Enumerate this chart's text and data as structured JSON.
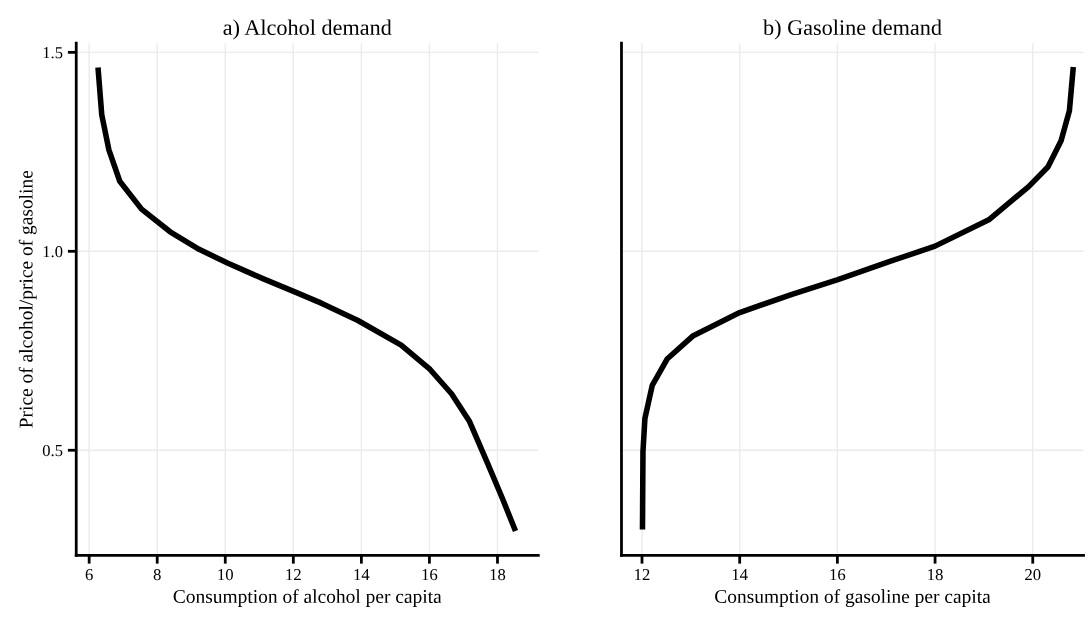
{
  "chart_data": [
    {
      "type": "line",
      "title": "a) Alcohol demand",
      "xlabel": "Consumption of alcohol per capita",
      "ylabel": "Price of alcohol/price of gasoline",
      "xlim": [
        5.62,
        19.2
      ],
      "ylim": [
        0.236,
        1.523
      ],
      "xticks": [
        6,
        8,
        10,
        12,
        14,
        16,
        18
      ],
      "yticks": [
        {
          "value": 0.5,
          "label": "0.5"
        },
        {
          "value": 1,
          "label": "1.0"
        },
        {
          "value": 1.5,
          "label": "1.5"
        }
      ],
      "grid": true,
      "line_style": "solid",
      "marker": "none",
      "series": [
        {
          "color": "#000000",
          "x": [
            6.26,
            6.37,
            6.58,
            6.9,
            7.54,
            8.38,
            9.23,
            10.08,
            11.14,
            11.99,
            12.84,
            13.9,
            15.17,
            16.02,
            16.65,
            17.18,
            17.71,
            18.14,
            18.53
          ],
          "values": [
            1.462,
            1.343,
            1.255,
            1.176,
            1.106,
            1.049,
            1.005,
            0.97,
            0.93,
            0.9,
            0.869,
            0.826,
            0.764,
            0.703,
            0.642,
            0.572,
            0.467,
            0.38,
            0.297
          ]
        }
      ]
    },
    {
      "type": "line",
      "title": "b) Gasoline demand",
      "xlabel": "Consumption of gasoline per capita",
      "xlim": [
        11.58,
        21.04
      ],
      "ylim": [
        0.236,
        1.523
      ],
      "xticks": [
        12,
        14,
        16,
        18,
        20
      ],
      "yticks": [
        {
          "value": 0.5,
          "label": null
        },
        {
          "value": 1,
          "label": null
        },
        {
          "value": 1.5,
          "label": null
        }
      ],
      "tick_labels": "x",
      "grid": true,
      "line_style": "solid",
      "marker": "none",
      "series": [
        {
          "color": "#000000",
          "x": [
            12.01,
            12.02,
            12.06,
            12.21,
            12.52,
            13.05,
            14.0,
            15.07,
            16.01,
            17.09,
            18.0,
            19.1,
            19.91,
            20.31,
            20.58,
            20.75,
            20.83
          ],
          "values": [
            0.301,
            0.497,
            0.58,
            0.663,
            0.73,
            0.788,
            0.846,
            0.892,
            0.929,
            0.975,
            1.013,
            1.079,
            1.162,
            1.212,
            1.278,
            1.353,
            1.463
          ]
        }
      ]
    }
  ]
}
